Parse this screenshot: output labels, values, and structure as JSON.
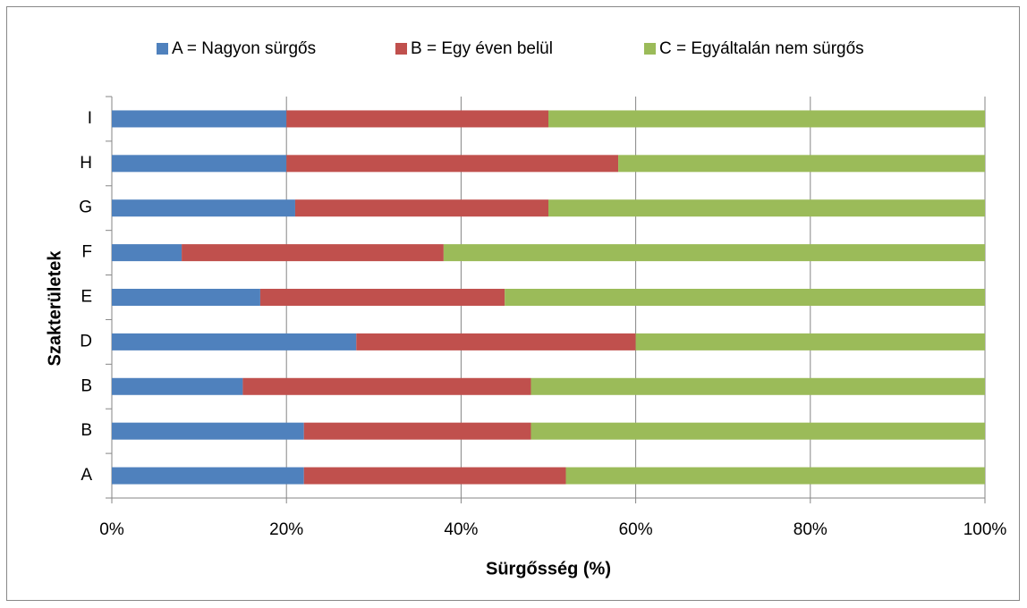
{
  "chart_data": {
    "type": "stacked_barh",
    "xlabel": "Sürgősség (%)",
    "ylabel": "Szakterületek",
    "categories": [
      "A",
      "B",
      "B",
      "D",
      "E",
      "F",
      "G",
      "H",
      "I"
    ],
    "series": [
      {
        "name": "A = Nagyon sürgős",
        "color": "#4f81bd",
        "values": [
          22,
          22,
          15,
          28,
          17,
          8,
          21,
          20,
          20
        ]
      },
      {
        "name": "B = Egy éven belül",
        "color": "#c0504d",
        "values": [
          30,
          26,
          33,
          32,
          28,
          30,
          29,
          38,
          30
        ]
      },
      {
        "name": "C = Egyáltalán nem sürgős",
        "color": "#9bbb59",
        "values": [
          48,
          52,
          52,
          40,
          55,
          62,
          50,
          42,
          50
        ]
      }
    ],
    "xlim": [
      0,
      100
    ],
    "xticks": [
      {
        "value": 0,
        "label": "0%"
      },
      {
        "value": 20,
        "label": "20%"
      },
      {
        "value": 40,
        "label": "40%"
      },
      {
        "value": 60,
        "label": "60%"
      },
      {
        "value": 80,
        "label": "80%"
      },
      {
        "value": 100,
        "label": "100%"
      }
    ],
    "grid": true,
    "legend": "top"
  }
}
